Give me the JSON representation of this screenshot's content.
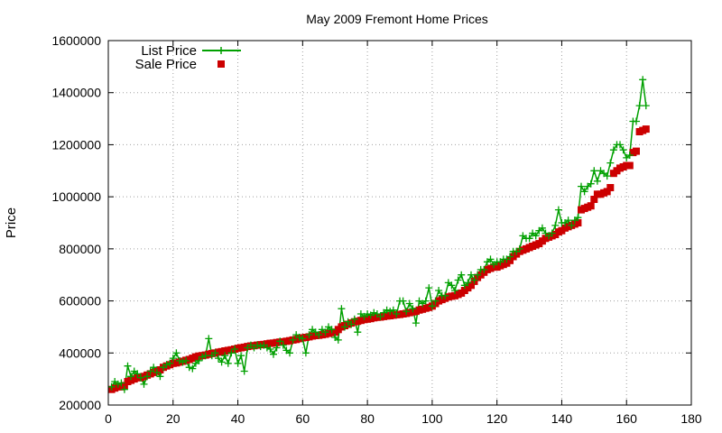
{
  "chart_data": {
    "type": "line",
    "title": "May 2009 Fremont Home Prices",
    "xlabel": "",
    "ylabel": "Price",
    "xlim": [
      0,
      180
    ],
    "ylim": [
      200000,
      1600000
    ],
    "x_ticks": [
      0,
      20,
      40,
      60,
      80,
      100,
      120,
      140,
      160,
      180
    ],
    "y_ticks": [
      200000,
      400000,
      600000,
      800000,
      1000000,
      1200000,
      1400000,
      1600000
    ],
    "grid": true,
    "legend_position": "top-left",
    "series": [
      {
        "name": "List Price",
        "style": "line-plus",
        "color": "#00a000",
        "x": [
          1,
          2,
          3,
          4,
          5,
          6,
          7,
          8,
          9,
          10,
          11,
          12,
          13,
          14,
          15,
          16,
          17,
          18,
          19,
          20,
          21,
          22,
          23,
          24,
          25,
          26,
          27,
          28,
          29,
          30,
          31,
          32,
          33,
          34,
          35,
          36,
          37,
          38,
          39,
          40,
          41,
          42,
          43,
          44,
          45,
          46,
          47,
          48,
          49,
          50,
          51,
          52,
          53,
          54,
          55,
          56,
          57,
          58,
          59,
          60,
          61,
          62,
          63,
          64,
          65,
          66,
          67,
          68,
          69,
          70,
          71,
          72,
          73,
          74,
          75,
          76,
          77,
          78,
          79,
          80,
          81,
          82,
          83,
          84,
          85,
          86,
          87,
          88,
          89,
          90,
          91,
          92,
          93,
          94,
          95,
          96,
          97,
          98,
          99,
          100,
          101,
          102,
          103,
          104,
          105,
          106,
          107,
          108,
          109,
          110,
          111,
          112,
          113,
          114,
          115,
          116,
          117,
          118,
          119,
          120,
          121,
          122,
          123,
          124,
          125,
          126,
          127,
          128,
          129,
          130,
          131,
          132,
          133,
          134,
          135,
          136,
          137,
          138,
          139,
          140,
          141,
          142,
          143,
          144,
          145,
          146,
          147,
          148,
          149,
          150,
          151,
          152,
          153,
          154,
          155,
          156,
          157,
          158,
          159,
          160,
          161,
          162,
          163,
          164,
          165,
          166
        ],
        "values": [
          270000,
          290000,
          280000,
          285000,
          260000,
          350000,
          310000,
          330000,
          320000,
          305000,
          280000,
          310000,
          330000,
          345000,
          325000,
          310000,
          345000,
          355000,
          360000,
          380000,
          400000,
          370000,
          365000,
          370000,
          345000,
          340000,
          360000,
          370000,
          385000,
          390000,
          455000,
          390000,
          400000,
          380000,
          365000,
          390000,
          360000,
          400000,
          415000,
          360000,
          390000,
          330000,
          420000,
          430000,
          420000,
          430000,
          425000,
          430000,
          420000,
          415000,
          395000,
          420000,
          445000,
          430000,
          410000,
          400000,
          450000,
          470000,
          460000,
          455000,
          400000,
          470000,
          490000,
          480000,
          470000,
          490000,
          480000,
          500000,
          490000,
          460000,
          450000,
          570000,
          500000,
          520000,
          510000,
          530000,
          480000,
          550000,
          540000,
          550000,
          545000,
          555000,
          550000,
          540000,
          555000,
          565000,
          560000,
          565000,
          550000,
          600000,
          600000,
          560000,
          590000,
          570000,
          515000,
          600000,
          590000,
          600000,
          650000,
          580000,
          600000,
          640000,
          620000,
          620000,
          670000,
          660000,
          640000,
          680000,
          700000,
          660000,
          670000,
          700000,
          680000,
          700000,
          720000,
          720000,
          750000,
          760000,
          740000,
          750000,
          750000,
          760000,
          760000,
          770000,
          790000,
          790000,
          800000,
          850000,
          840000,
          840000,
          860000,
          850000,
          870000,
          880000,
          860000,
          850000,
          860000,
          890000,
          950000,
          900000,
          900000,
          910000,
          890000,
          910000,
          920000,
          1040000,
          1020000,
          1040000,
          1050000,
          1100000,
          1060000,
          1100000,
          1090000,
          1080000,
          1130000,
          1180000,
          1200000,
          1200000,
          1180000,
          1150000,
          1160000,
          1290000,
          1290000,
          1350000,
          1450000,
          1350000
        ]
      },
      {
        "name": "Sale Price",
        "style": "square-markers",
        "color": "#cc0000",
        "x": [
          1,
          2,
          3,
          4,
          5,
          6,
          7,
          8,
          9,
          10,
          11,
          12,
          13,
          14,
          15,
          16,
          17,
          18,
          19,
          20,
          21,
          22,
          23,
          24,
          25,
          26,
          27,
          28,
          29,
          30,
          31,
          32,
          33,
          34,
          35,
          36,
          37,
          38,
          39,
          40,
          41,
          42,
          43,
          44,
          45,
          46,
          47,
          48,
          49,
          50,
          51,
          52,
          53,
          54,
          55,
          56,
          57,
          58,
          59,
          60,
          61,
          62,
          63,
          64,
          65,
          66,
          67,
          68,
          69,
          70,
          71,
          72,
          73,
          74,
          75,
          76,
          77,
          78,
          79,
          80,
          81,
          82,
          83,
          84,
          85,
          86,
          87,
          88,
          89,
          90,
          91,
          92,
          93,
          94,
          95,
          96,
          97,
          98,
          99,
          100,
          101,
          102,
          103,
          104,
          105,
          106,
          107,
          108,
          109,
          110,
          111,
          112,
          113,
          114,
          115,
          116,
          117,
          118,
          119,
          120,
          121,
          122,
          123,
          124,
          125,
          126,
          127,
          128,
          129,
          130,
          131,
          132,
          133,
          134,
          135,
          136,
          137,
          138,
          139,
          140,
          141,
          142,
          143,
          144,
          145,
          146,
          147,
          148,
          149,
          150,
          151,
          152,
          153,
          154,
          155,
          156,
          157,
          158,
          159,
          160,
          161,
          162,
          163,
          164,
          165,
          166
        ],
        "values": [
          260000,
          265000,
          270000,
          270000,
          275000,
          290000,
          295000,
          300000,
          305000,
          305000,
          310000,
          315000,
          320000,
          325000,
          330000,
          335000,
          345000,
          350000,
          355000,
          360000,
          362000,
          365000,
          368000,
          372000,
          375000,
          380000,
          385000,
          388000,
          390000,
          392000,
          395000,
          398000,
          400000,
          403000,
          405000,
          408000,
          410000,
          412000,
          415000,
          418000,
          420000,
          422000,
          425000,
          427000,
          428000,
          430000,
          432000,
          433000,
          435000,
          437000,
          438000,
          440000,
          442000,
          443000,
          445000,
          447000,
          450000,
          452000,
          455000,
          458000,
          460000,
          462000,
          465000,
          467000,
          468000,
          470000,
          472000,
          475000,
          478000,
          480000,
          490000,
          500000,
          505000,
          510000,
          515000,
          520000,
          522000,
          525000,
          528000,
          530000,
          532000,
          535000,
          537000,
          538000,
          540000,
          542000,
          543000,
          545000,
          547000,
          548000,
          550000,
          552000,
          555000,
          558000,
          560000,
          565000,
          568000,
          572000,
          575000,
          580000,
          590000,
          600000,
          605000,
          610000,
          615000,
          618000,
          620000,
          625000,
          630000,
          640000,
          650000,
          660000,
          675000,
          690000,
          700000,
          710000,
          720000,
          725000,
          730000,
          730000,
          735000,
          740000,
          745000,
          755000,
          770000,
          780000,
          790000,
          795000,
          800000,
          805000,
          810000,
          815000,
          820000,
          830000,
          840000,
          845000,
          850000,
          855000,
          865000,
          870000,
          880000,
          885000,
          890000,
          895000,
          900000,
          950000,
          955000,
          960000,
          965000,
          990000,
          1010000,
          1010000,
          1015000,
          1020000,
          1035000,
          1090000,
          1100000,
          1110000,
          1115000,
          1120000,
          1120000,
          1170000,
          1175000,
          1250000,
          1255000,
          1260000
        ]
      }
    ]
  }
}
